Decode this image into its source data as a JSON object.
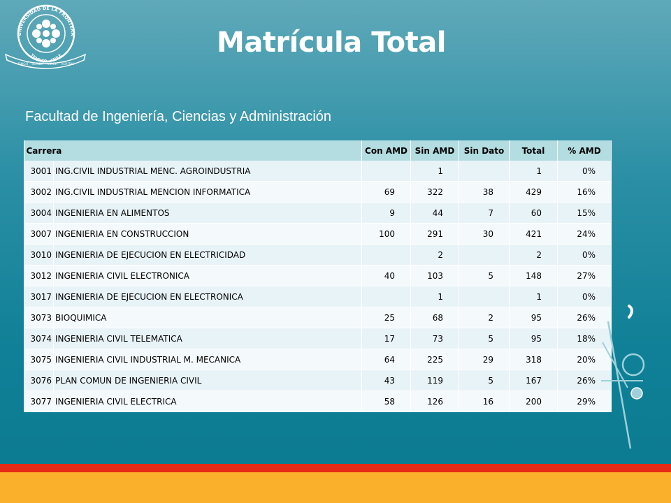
{
  "slide": {
    "title": "Matrícula Total",
    "subtitle": "Facultad de Ingeniería, Ciencias y Administración"
  },
  "logo": {
    "ring_text_top": "UNIVERSIDAD DE LA FRONTERA",
    "ring_text_bottom": "TEMUCO · CHILE",
    "banner_text": "FINGIT · SCRIBIT · VINCIT · VERITAS"
  },
  "table": {
    "headers": [
      "Carrera",
      "Con AMD",
      "Sin AMD",
      "Sin Dato",
      "Total",
      "% AMD"
    ],
    "rows": [
      {
        "code": "3001",
        "name": "ING.CIVIL INDUSTRIAL MENC. AGROINDUSTRIA",
        "con": "",
        "sin": "1",
        "sindato": "",
        "total": "1",
        "pct": "0%"
      },
      {
        "code": "3002",
        "name": "ING.CIVIL INDUSTRIAL MENCION INFORMATICA",
        "con": "69",
        "sin": "322",
        "sindato": "38",
        "total": "429",
        "pct": "16%"
      },
      {
        "code": "3004",
        "name": "INGENIERIA EN ALIMENTOS",
        "con": "9",
        "sin": "44",
        "sindato": "7",
        "total": "60",
        "pct": "15%"
      },
      {
        "code": "3007",
        "name": "INGENIERIA EN CONSTRUCCION",
        "con": "100",
        "sin": "291",
        "sindato": "30",
        "total": "421",
        "pct": "24%"
      },
      {
        "code": "3010",
        "name": "INGENIERIA DE EJECUCION EN ELECTRICIDAD",
        "con": "",
        "sin": "2",
        "sindato": "",
        "total": "2",
        "pct": "0%"
      },
      {
        "code": "3012",
        "name": "INGENIERIA CIVIL ELECTRONICA",
        "con": "40",
        "sin": "103",
        "sindato": "5",
        "total": "148",
        "pct": "27%"
      },
      {
        "code": "3017",
        "name": "INGENIERIA DE EJECUCION EN ELECTRONICA",
        "con": "",
        "sin": "1",
        "sindato": "",
        "total": "1",
        "pct": "0%"
      },
      {
        "code": "3073",
        "name": "BIOQUIMICA",
        "con": "25",
        "sin": "68",
        "sindato": "2",
        "total": "95",
        "pct": "26%"
      },
      {
        "code": "3074",
        "name": "INGENIERIA CIVIL TELEMATICA",
        "con": "17",
        "sin": "73",
        "sindato": "5",
        "total": "95",
        "pct": "18%"
      },
      {
        "code": "3075",
        "name": "INGENIERIA CIVIL INDUSTRIAL M. MECANICA",
        "con": "64",
        "sin": "225",
        "sindato": "29",
        "total": "318",
        "pct": "20%"
      },
      {
        "code": "3076",
        "name": "PLAN COMUN DE INGENIERIA CIVIL",
        "con": "43",
        "sin": "119",
        "sindato": "5",
        "total": "167",
        "pct": "26%"
      },
      {
        "code": "3077",
        "name": "INGENIERIA CIVIL ELECTRICA",
        "con": "58",
        "sin": "126",
        "sindato": "16",
        "total": "200",
        "pct": "29%"
      }
    ]
  },
  "colors": {
    "header_bg": "#b3dde1",
    "row_bg": "#e8f3f7",
    "footer_red": "#e52a16",
    "footer_orange": "#fbb02c"
  }
}
